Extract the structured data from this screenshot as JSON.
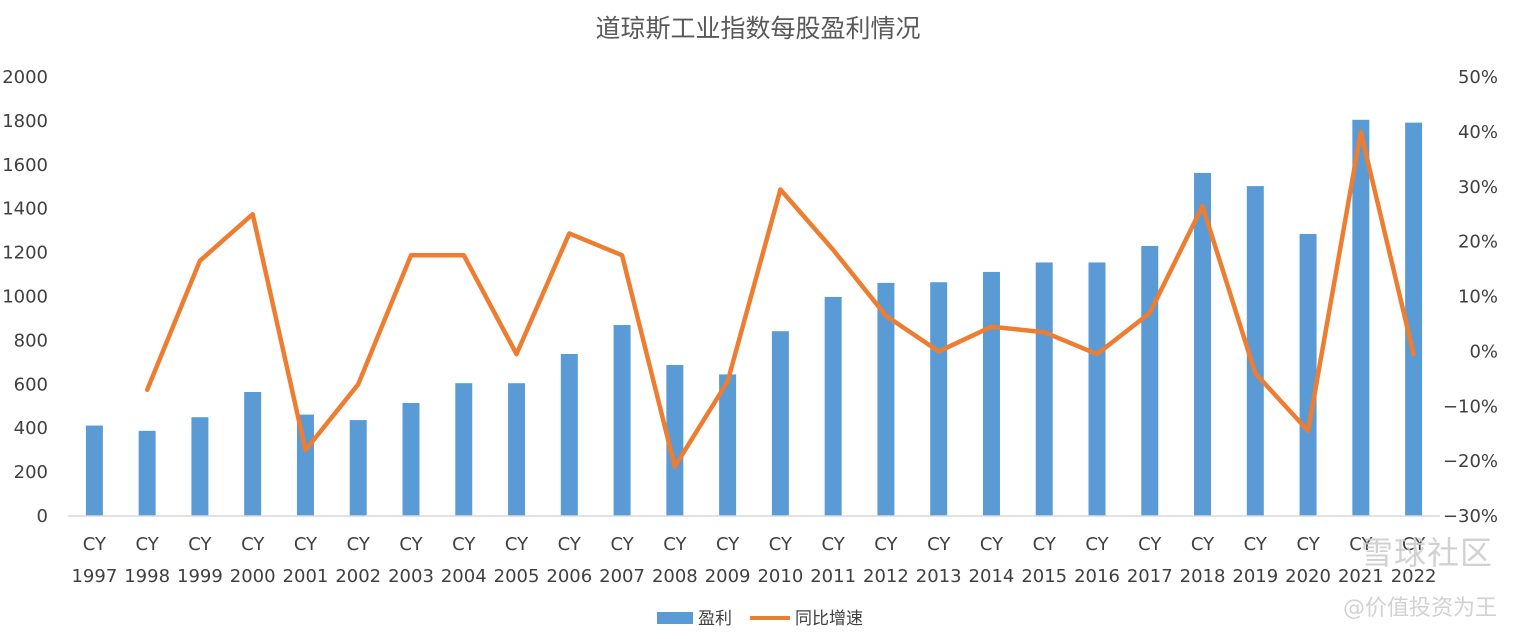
{
  "chart_data": {
    "type": "bar",
    "title": "道琼斯工业指数每股盈利情况",
    "categories_top": [
      "CY",
      "CY",
      "CY",
      "CY",
      "CY",
      "CY",
      "CY",
      "CY",
      "CY",
      "CY",
      "CY",
      "CY",
      "CY",
      "CY",
      "CY",
      "CY",
      "CY",
      "CY",
      "CY",
      "CY",
      "CY",
      "CY",
      "CY",
      "CY",
      "CY",
      "CY"
    ],
    "categories": [
      "1997",
      "1998",
      "1999",
      "2000",
      "2001",
      "2002",
      "2003",
      "2004",
      "2005",
      "2006",
      "2007",
      "2008",
      "2009",
      "2010",
      "2011",
      "2012",
      "2013",
      "2014",
      "2015",
      "2016",
      "2017",
      "2018",
      "2019",
      "2020",
      "2021",
      "2022"
    ],
    "series": [
      {
        "name": "盈利",
        "type": "bar",
        "axis": "left",
        "color": "#5B9BD5",
        "values": [
          412,
          388,
          450,
          565,
          462,
          437,
          515,
          605,
          605,
          738,
          870,
          688,
          645,
          842,
          998,
          1062,
          1065,
          1112,
          1155,
          1155,
          1230,
          1563,
          1503,
          1285,
          1805,
          1792
        ]
      },
      {
        "name": "同比增速",
        "type": "line",
        "axis": "right",
        "color": "#ED7D31",
        "values": [
          null,
          -7.0,
          16.5,
          25.0,
          -18.0,
          -6.0,
          17.5,
          17.5,
          -0.5,
          21.5,
          17.5,
          -21.0,
          -5.5,
          29.5,
          18.5,
          6.5,
          0.0,
          4.5,
          3.5,
          -0.5,
          7.0,
          26.5,
          -4.0,
          -14.5,
          40.0,
          -0.5
        ]
      }
    ],
    "y_left": {
      "min": 0,
      "max": 2000,
      "step": 200,
      "ticks": [
        "0",
        "200",
        "400",
        "600",
        "800",
        "1000",
        "1200",
        "1400",
        "1600",
        "1800",
        "2000"
      ]
    },
    "y_right": {
      "min": -30,
      "max": 50,
      "step": 10,
      "ticks": [
        "−30%",
        "−20%",
        "−10%",
        "0%",
        "10%",
        "20%",
        "30%",
        "40%",
        "50%"
      ]
    },
    "grid": false,
    "legend_position": "bottom",
    "legend": [
      "盈利",
      "同比增速"
    ]
  },
  "watermark": {
    "brand": "雪球社区",
    "author": "@价值投资为王"
  }
}
